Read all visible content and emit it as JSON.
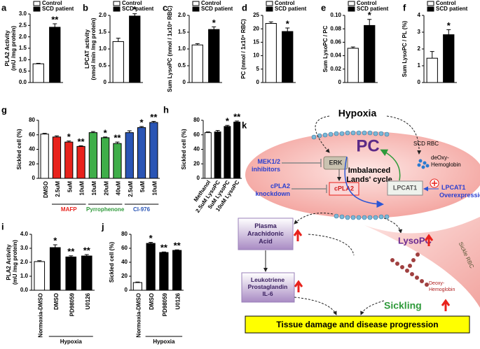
{
  "chart_data": [
    {
      "type": "bar",
      "panel": "a",
      "ylabel": [
        "PLA2 Activity",
        "(mU /mg protein)"
      ],
      "ylim": [
        0,
        3
      ],
      "yticks": [
        {
          "value": 0,
          "label": "0.0"
        },
        {
          "value": 0.5,
          "label": "0.5"
        },
        {
          "value": 1,
          "label": "1.0"
        },
        {
          "value": 1.5,
          "label": "1.5"
        },
        {
          "value": 2,
          "label": "2.0"
        },
        {
          "value": 2.5,
          "label": "2.5"
        },
        {
          "value": 3,
          "label": "3.0"
        }
      ],
      "series": [
        {
          "name": "Control",
          "color": "#ffffff",
          "values": [
            0.82
          ],
          "errors": [
            0.02
          ],
          "annotations": [
            null
          ]
        },
        {
          "name": "SCD patient",
          "color": "#000000",
          "values": [
            2.42
          ],
          "errors": [
            0.15
          ],
          "annotations": [
            "**"
          ]
        }
      ]
    },
    {
      "type": "bar",
      "panel": "b",
      "ylabel": [
        "LPCAT activity",
        "(nmol /min /mg protein)"
      ],
      "ylim": [
        0,
        2
      ],
      "yticks": [
        0,
        0.5,
        {
          "value": 1,
          "label": "1.0"
        },
        1.5,
        {
          "value": 2,
          "label": "2.0"
        }
      ],
      "series": [
        {
          "name": "Control",
          "color": "#ffffff",
          "values": [
            1.22
          ],
          "errors": [
            0.1
          ],
          "annotations": [
            null
          ]
        },
        {
          "name": "SCD patient",
          "color": "#000000",
          "values": [
            1.98
          ],
          "errors": [
            0.07
          ],
          "annotations": [
            "*"
          ]
        }
      ]
    },
    {
      "type": "bar",
      "panel": "c",
      "ylabel": [
        "Sum LysoPC (nmol / 1x10⁹ RBC)"
      ],
      "ylim": [
        0,
        2
      ],
      "yticks": [
        0,
        0.5,
        {
          "value": 1,
          "label": "1.0"
        },
        1.5,
        {
          "value": 2,
          "label": "2.0"
        }
      ],
      "series": [
        {
          "name": "Control",
          "color": "#ffffff",
          "values": [
            1.12
          ],
          "errors": [
            0.04
          ],
          "annotations": [
            null
          ]
        },
        {
          "name": "SCD patient",
          "color": "#000000",
          "values": [
            1.58
          ],
          "errors": [
            0.08
          ],
          "annotations": [
            "*"
          ]
        }
      ]
    },
    {
      "type": "bar",
      "panel": "d",
      "ylabel": [
        "PC (nmol / 1x10⁹ RBC)"
      ],
      "ylim": [
        0,
        25
      ],
      "yticks": [
        0,
        5,
        10,
        15,
        20,
        25
      ],
      "series": [
        {
          "name": "Control",
          "color": "#ffffff",
          "values": [
            22
          ],
          "errors": [
            0.6
          ],
          "annotations": [
            null
          ]
        },
        {
          "name": "SCD patient",
          "color": "#000000",
          "values": [
            19
          ],
          "errors": [
            1.3
          ],
          "annotations": [
            "*"
          ]
        }
      ]
    },
    {
      "type": "bar",
      "panel": "e",
      "ylabel": [
        "Sum LysoPC / PC"
      ],
      "ylim": [
        0,
        0.1
      ],
      "yticks": [
        0,
        0.02,
        0.04,
        0.06,
        0.08,
        {
          "value": 0.1,
          "label": "0.10"
        }
      ],
      "series": [
        {
          "name": "Control",
          "color": "#ffffff",
          "values": [
            0.051
          ],
          "errors": [
            0.002
          ],
          "annotations": [
            null
          ]
        },
        {
          "name": "SCD patient",
          "color": "#000000",
          "values": [
            0.085
          ],
          "errors": [
            0.009
          ],
          "annotations": [
            "*"
          ]
        }
      ]
    },
    {
      "type": "bar",
      "panel": "f",
      "ylabel": [
        "Sum LysoPC / PL (%)"
      ],
      "ylim": [
        0,
        4
      ],
      "yticks": [
        0,
        1,
        2,
        3,
        4
      ],
      "series": [
        {
          "name": "Control",
          "color": "#ffffff",
          "values": [
            1.45
          ],
          "errors": [
            0.4
          ],
          "annotations": [
            null
          ]
        },
        {
          "name": "SCD patient",
          "color": "#000000",
          "values": [
            2.85
          ],
          "errors": [
            0.3
          ],
          "annotations": [
            "*"
          ]
        }
      ]
    },
    {
      "type": "bar",
      "panel": "g",
      "ylabel": [
        "Sickled cell (%)"
      ],
      "ylim": [
        0,
        80
      ],
      "yticks": [
        0,
        20,
        40,
        60,
        80
      ],
      "categories": [
        "DMSO",
        "2.5uM",
        "5uM",
        "10uM",
        "10uM",
        "20uM",
        "40uM",
        "2.5uM",
        "5uM",
        "10uM"
      ],
      "values": [
        61,
        57,
        50,
        44,
        63,
        56,
        48,
        63,
        70,
        77
      ],
      "errors": [
        1,
        1.5,
        1.5,
        1,
        1.5,
        1,
        2,
        2.5,
        1.5,
        1.5
      ],
      "colors": [
        "#ffffff",
        "#e8221c",
        "#e8221c",
        "#e8221c",
        "#3fae49",
        "#3fae49",
        "#3fae49",
        "#2a55b5",
        "#2a55b5",
        "#2a55b5"
      ],
      "annotations": [
        null,
        null,
        "*",
        "**",
        null,
        "*",
        "**",
        null,
        "*",
        "**"
      ],
      "groups": [
        {
          "label": "MAFP",
          "color": "#e8221c",
          "span": [
            1,
            3
          ]
        },
        {
          "label": "Pyrrophenone",
          "color": "#2f9a3a",
          "span": [
            4,
            6
          ]
        },
        {
          "label": "CI-976",
          "color": "#2a55b5",
          "span": [
            7,
            9
          ]
        }
      ]
    },
    {
      "type": "bar",
      "panel": "h",
      "ylabel": [
        "Sickled cell (%)"
      ],
      "ylim": [
        0,
        80
      ],
      "yticks": [
        0,
        20,
        40,
        60,
        80
      ],
      "categories": [
        "Methanol",
        "2.5uM LysoPC",
        "5uM LysoPC",
        "10uM LysoPC"
      ],
      "values": [
        63,
        64,
        71.5,
        77.5
      ],
      "errors": [
        1,
        2,
        1.5,
        1.5
      ],
      "colors": [
        "#ffffff",
        "#000000",
        "#000000",
        "#000000"
      ],
      "annotations": [
        null,
        null,
        "*",
        "**"
      ]
    },
    {
      "type": "bar",
      "panel": "i",
      "ylabel": [
        "PLA2 Activity",
        "(mU /mg protein)"
      ],
      "ylim": [
        0,
        4
      ],
      "yticks": [
        {
          "value": 0,
          "label": "0.0"
        },
        {
          "value": 1,
          "label": "1.0"
        },
        {
          "value": 2,
          "label": "2.0"
        },
        {
          "value": 3,
          "label": "3.0"
        },
        {
          "value": 4,
          "label": "4.0"
        }
      ],
      "categories": [
        "Normoxia-DMSO",
        "DMSO",
        "PD98059",
        "U0126"
      ],
      "values": [
        2.05,
        3.05,
        2.38,
        2.45
      ],
      "errors": [
        0.06,
        0.2,
        0.08,
        0.1
      ],
      "colors": [
        "#ffffff",
        "#000000",
        "#000000",
        "#000000"
      ],
      "annotations": [
        null,
        "*",
        "**",
        "**"
      ],
      "groups": [
        {
          "label": "Hypoxia",
          "color": "#000000",
          "span": [
            1,
            3
          ]
        }
      ]
    },
    {
      "type": "bar",
      "panel": "j",
      "ylabel": [
        "Sickled cell (%)"
      ],
      "ylim": [
        0,
        80
      ],
      "yticks": [
        0,
        20,
        40,
        60,
        80
      ],
      "categories": [
        "Normoxia-DMSO",
        "DMSO",
        "PD98059",
        "U0126"
      ],
      "values": [
        11,
        67,
        54,
        57
      ],
      "errors": [
        0.8,
        1.5,
        0.8,
        0.8
      ],
      "colors": [
        "#ffffff",
        "#000000",
        "#000000",
        "#000000"
      ],
      "annotations": [
        null,
        "*",
        "**",
        "**"
      ],
      "groups": [
        {
          "label": "Hypoxia",
          "color": "#000000",
          "span": [
            1,
            3
          ]
        }
      ]
    }
  ],
  "diagram": {
    "panel": "k",
    "stimulus": "Hypoxia",
    "molecule": "PC",
    "cell": "SCD RBC",
    "deoxy": [
      "deOxy-",
      "Hemoglobin"
    ],
    "inhibitor": [
      "MEK1/2",
      "inhibitors"
    ],
    "kinase": "ERK",
    "cycle": [
      "Imbalanced",
      "Lands' cycle"
    ],
    "knockdown": [
      "cPLA2",
      "knockdown"
    ],
    "enzyme1": "cPLA2",
    "enzyme2": "LPCAT1",
    "overexpression": [
      "LPCAT1",
      "Overexpression"
    ],
    "arachidonic": [
      "Plasma",
      "Arachidonic",
      "Acid"
    ],
    "lysopc": "LysoPC",
    "sickle_rbc": "Sickle RBC",
    "deoxy2": [
      "Deoxy-",
      "Hemoglobin"
    ],
    "mediators": [
      "Leukotriene",
      "Prostaglandin",
      "IL-6"
    ],
    "sickling": "Sickling",
    "outcome": "Tissue damage and disease progression"
  }
}
